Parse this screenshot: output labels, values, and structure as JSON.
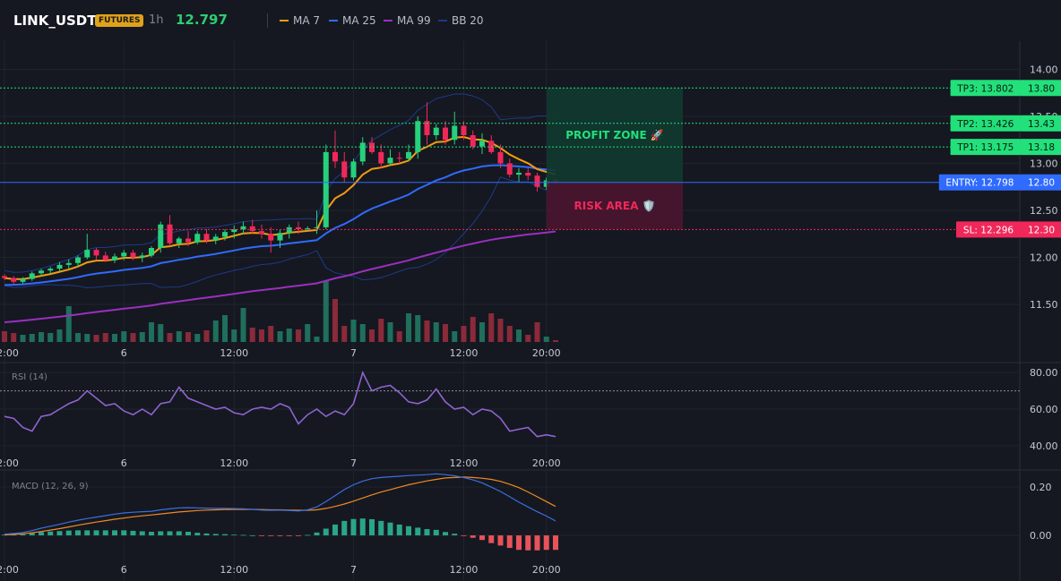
{
  "header": {
    "symbol": "LINK_USDT",
    "badge": "FUTURES",
    "timeframe": "1h",
    "last_price": "12.797"
  },
  "indicators": [
    {
      "name": "MA 7",
      "color": "#f39c12"
    },
    {
      "name": "MA 25",
      "color": "#2f6bff"
    },
    {
      "name": "MA 99",
      "color": "#9b2fc0"
    },
    {
      "name": "BB 20",
      "color": "#1e3a8a"
    }
  ],
  "colors": {
    "up": "#26d07c",
    "down": "#f0285a",
    "vol_up": "#1f6f5c",
    "vol_down": "#8a2a3a",
    "tp": "#22e07a",
    "entry": "#2f6bff",
    "sl": "#f0285a",
    "rsi": "#8e63d0",
    "macd": "#3a6fe0",
    "signal": "#f08a24",
    "hist_up": "#2aa58a",
    "hist_down": "#e8525a"
  },
  "x_labels": [
    "12:00",
    "6",
    "12:00",
    "7",
    "12:00",
    "20:00"
  ],
  "x_label_candles": [
    0,
    13,
    25,
    38,
    50,
    59
  ],
  "price_axis": {
    "ticks": [
      "14.00",
      "13.50",
      "13.00",
      "12.50",
      "12.00",
      "11.50"
    ],
    "values": [
      14.0,
      13.5,
      13.0,
      12.5,
      12.0,
      11.5
    ],
    "min": 11.1,
    "max": 14.3
  },
  "levels": [
    {
      "key": "tp3",
      "label": "TP3: 13.802",
      "axis": "13.80",
      "value": 13.802,
      "type": "tp"
    },
    {
      "key": "tp2",
      "label": "TP2: 13.426",
      "axis": "13.43",
      "value": 13.426,
      "type": "tp"
    },
    {
      "key": "tp1",
      "label": "TP1: 13.175",
      "axis": "13.18",
      "value": 13.175,
      "type": "tp"
    },
    {
      "key": "entry",
      "label": "ENTRY: 12.798",
      "axis": "12.80",
      "value": 12.798,
      "type": "entry"
    },
    {
      "key": "sl",
      "label": "SL: 12.296",
      "axis": "12.30",
      "value": 12.296,
      "type": "sl"
    }
  ],
  "zones": {
    "profit": "PROFIT ZONE 🚀",
    "risk": "RISK AREA 🛡️"
  },
  "rsi": {
    "label": "RSI (14)",
    "ticks": [
      "80.00",
      "60.00",
      "40.00"
    ],
    "tick_values": [
      80,
      60,
      40
    ],
    "min": 38,
    "max": 84,
    "level": 70,
    "values": [
      56,
      55,
      50,
      48,
      56,
      57,
      60,
      63,
      65,
      70,
      66,
      62,
      63,
      59,
      57,
      60,
      57,
      63,
      64,
      72,
      66,
      64,
      62,
      60,
      61,
      58,
      57,
      60,
      61,
      60,
      63,
      61,
      52,
      57,
      60,
      56,
      59,
      57,
      63,
      80,
      70,
      72,
      73,
      69,
      64,
      63,
      65,
      71,
      64,
      60,
      61,
      57,
      60,
      59,
      55,
      48,
      49,
      50,
      45,
      46,
      45
    ]
  },
  "macd": {
    "label": "MACD (12, 26, 9)",
    "ticks": [
      "0.20",
      "0.00"
    ],
    "tick_values": [
      0.2,
      0.0
    ],
    "min": -0.1,
    "max": 0.26,
    "macd_line": [
      0.005,
      0.008,
      0.012,
      0.02,
      0.03,
      0.038,
      0.046,
      0.055,
      0.063,
      0.07,
      0.076,
      0.082,
      0.088,
      0.093,
      0.096,
      0.098,
      0.1,
      0.106,
      0.11,
      0.114,
      0.115,
      0.114,
      0.113,
      0.112,
      0.112,
      0.111,
      0.11,
      0.108,
      0.105,
      0.104,
      0.105,
      0.103,
      0.101,
      0.106,
      0.118,
      0.14,
      0.165,
      0.19,
      0.21,
      0.225,
      0.235,
      0.24,
      0.243,
      0.245,
      0.248,
      0.25,
      0.252,
      0.255,
      0.252,
      0.247,
      0.24,
      0.23,
      0.218,
      0.2,
      0.182,
      0.16,
      0.138,
      0.118,
      0.098,
      0.08,
      0.06
    ],
    "signal_line": [
      0.002,
      0.004,
      0.007,
      0.011,
      0.016,
      0.022,
      0.028,
      0.035,
      0.042,
      0.049,
      0.055,
      0.061,
      0.067,
      0.072,
      0.077,
      0.081,
      0.085,
      0.089,
      0.093,
      0.097,
      0.1,
      0.103,
      0.105,
      0.106,
      0.107,
      0.108,
      0.108,
      0.108,
      0.107,
      0.106,
      0.106,
      0.105,
      0.104,
      0.104,
      0.106,
      0.112,
      0.12,
      0.13,
      0.142,
      0.155,
      0.168,
      0.18,
      0.19,
      0.2,
      0.21,
      0.218,
      0.226,
      0.232,
      0.238,
      0.24,
      0.242,
      0.24,
      0.237,
      0.232,
      0.224,
      0.212,
      0.198,
      0.18,
      0.16,
      0.14,
      0.12
    ],
    "hist": [
      0.003,
      0.004,
      0.005,
      0.009,
      0.014,
      0.016,
      0.018,
      0.02,
      0.021,
      0.021,
      0.021,
      0.021,
      0.021,
      0.021,
      0.019,
      0.017,
      0.015,
      0.017,
      0.017,
      0.017,
      0.015,
      0.011,
      0.008,
      0.006,
      0.005,
      0.003,
      0.002,
      0.0,
      -0.002,
      -0.002,
      -0.001,
      -0.002,
      -0.003,
      0.002,
      0.012,
      0.028,
      0.045,
      0.06,
      0.068,
      0.07,
      0.067,
      0.06,
      0.053,
      0.045,
      0.038,
      0.032,
      0.026,
      0.023,
      0.014,
      0.007,
      -0.002,
      -0.01,
      -0.019,
      -0.032,
      -0.042,
      -0.052,
      -0.06,
      -0.062,
      -0.062,
      -0.06,
      -0.06
    ]
  },
  "chart_data": [
    {
      "type": "candlestick",
      "title": "LINK_USDT 1h",
      "ylim": [
        11.1,
        14.3
      ],
      "x_tick_labels": [
        "12:00",
        "6",
        "12:00",
        "7",
        "12:00",
        "20:00"
      ],
      "candles": [
        [
          11.8,
          11.82,
          11.76,
          11.78
        ],
        [
          11.78,
          11.8,
          11.72,
          11.74
        ],
        [
          11.74,
          11.79,
          11.72,
          11.77
        ],
        [
          11.77,
          11.85,
          11.75,
          11.83
        ],
        [
          11.83,
          11.88,
          11.8,
          11.86
        ],
        [
          11.86,
          11.9,
          11.82,
          11.88
        ],
        [
          11.88,
          11.95,
          11.85,
          11.92
        ],
        [
          11.92,
          11.98,
          11.88,
          11.94
        ],
        [
          11.94,
          12.02,
          11.9,
          12.0
        ],
        [
          12.0,
          12.25,
          11.98,
          12.08
        ],
        [
          12.08,
          12.1,
          11.98,
          12.02
        ],
        [
          12.02,
          12.06,
          11.95,
          11.97
        ],
        [
          11.97,
          12.04,
          11.94,
          12.01
        ],
        [
          12.01,
          12.08,
          11.97,
          12.05
        ],
        [
          12.05,
          12.08,
          11.97,
          12.0
        ],
        [
          12.0,
          12.05,
          11.95,
          12.02
        ],
        [
          12.02,
          12.12,
          12.0,
          12.1
        ],
        [
          12.1,
          12.38,
          12.05,
          12.35
        ],
        [
          12.35,
          12.45,
          12.12,
          12.15
        ],
        [
          12.15,
          12.22,
          12.1,
          12.2
        ],
        [
          12.2,
          12.28,
          12.12,
          12.16
        ],
        [
          12.16,
          12.28,
          12.14,
          12.25
        ],
        [
          12.25,
          12.3,
          12.15,
          12.18
        ],
        [
          12.18,
          12.25,
          12.14,
          12.22
        ],
        [
          12.22,
          12.3,
          12.18,
          12.27
        ],
        [
          12.27,
          12.34,
          12.2,
          12.3
        ],
        [
          12.3,
          12.38,
          12.25,
          12.33
        ],
        [
          12.33,
          12.4,
          12.25,
          12.28
        ],
        [
          12.28,
          12.35,
          12.2,
          12.25
        ],
        [
          12.25,
          12.32,
          12.05,
          12.18
        ],
        [
          12.18,
          12.3,
          12.1,
          12.26
        ],
        [
          12.26,
          12.35,
          12.2,
          12.32
        ],
        [
          12.32,
          12.38,
          12.25,
          12.3
        ],
        [
          12.3,
          12.33,
          12.28,
          12.31
        ],
        [
          12.31,
          12.5,
          12.25,
          12.32
        ],
        [
          12.32,
          13.2,
          12.3,
          13.12
        ],
        [
          13.12,
          13.35,
          12.95,
          13.02
        ],
        [
          13.02,
          13.12,
          12.8,
          12.85
        ],
        [
          12.85,
          13.05,
          12.82,
          13.02
        ],
        [
          13.02,
          13.28,
          12.98,
          13.22
        ],
        [
          13.22,
          13.28,
          13.1,
          13.12
        ],
        [
          13.12,
          13.2,
          12.95,
          13.0
        ],
        [
          13.0,
          13.15,
          12.98,
          13.06
        ],
        [
          13.06,
          13.12,
          13.0,
          13.05
        ],
        [
          13.05,
          13.2,
          13.02,
          13.12
        ],
        [
          13.12,
          13.5,
          13.05,
          13.45
        ],
        [
          13.45,
          13.65,
          13.2,
          13.3
        ],
        [
          13.3,
          13.42,
          13.25,
          13.38
        ],
        [
          13.38,
          13.45,
          13.2,
          13.25
        ],
        [
          13.25,
          13.55,
          13.2,
          13.4
        ],
        [
          13.4,
          13.45,
          13.25,
          13.3
        ],
        [
          13.3,
          13.35,
          13.15,
          13.18
        ],
        [
          13.18,
          13.32,
          13.1,
          13.24
        ],
        [
          13.24,
          13.3,
          13.1,
          13.12
        ],
        [
          13.12,
          13.2,
          12.95,
          13.0
        ],
        [
          13.0,
          13.05,
          12.85,
          12.88
        ],
        [
          12.88,
          12.95,
          12.8,
          12.9
        ],
        [
          12.9,
          12.95,
          12.82,
          12.87
        ],
        [
          12.87,
          12.9,
          12.7,
          12.75
        ],
        [
          12.75,
          12.85,
          12.72,
          12.82
        ],
        [
          12.82,
          12.85,
          12.78,
          12.8
        ]
      ],
      "volume": [
        12,
        10,
        8,
        9,
        11,
        10,
        14,
        40,
        10,
        9,
        8,
        10,
        9,
        12,
        10,
        11,
        22,
        20,
        10,
        12,
        11,
        9,
        13,
        24,
        30,
        14,
        38,
        16,
        14,
        18,
        12,
        15,
        14,
        20,
        6,
        68,
        48,
        18,
        25,
        20,
        14,
        26,
        22,
        12,
        32,
        30,
        24,
        22,
        20,
        12,
        18,
        28,
        22,
        32,
        26,
        18,
        14,
        8,
        22,
        6,
        2
      ]
    }
  ]
}
